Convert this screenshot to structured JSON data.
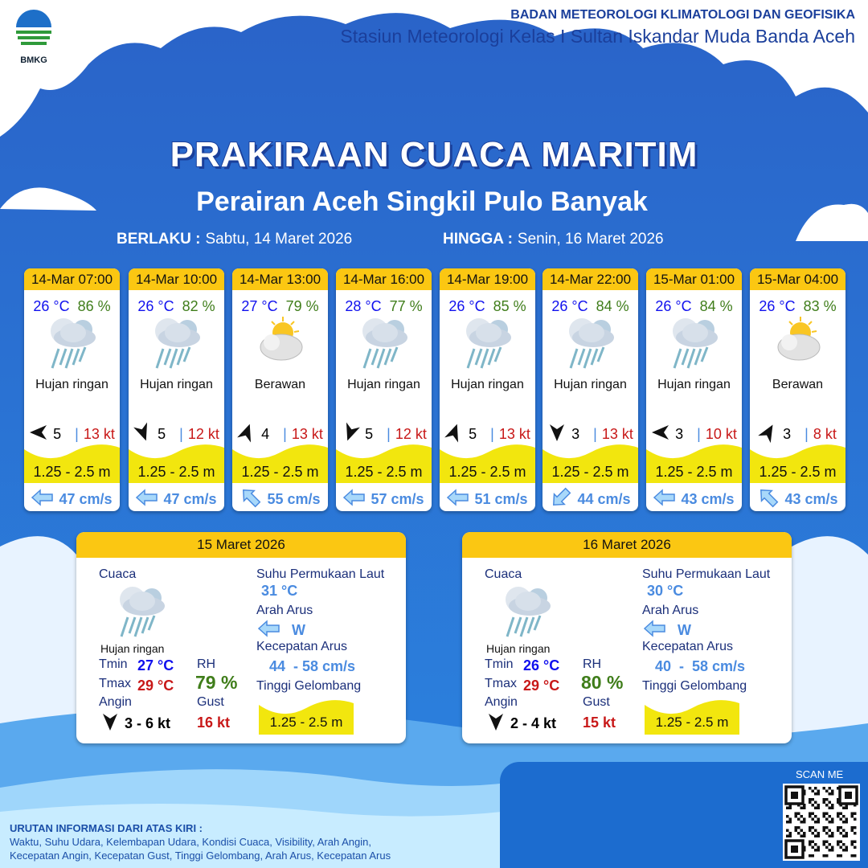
{
  "header": {
    "org": "BADAN METEOROLOGI KLIMATOLOGI DAN GEOFISIKA",
    "station": "Stasiun Meteorologi Kelas I Sultan Iskandar Muda Banda Aceh",
    "logo": "BMKG"
  },
  "title": "PRAKIRAAN CUACA MARITIM",
  "subtitle": "Perairan Aceh Singkil Pulo Banyak",
  "validity": {
    "from_label": "BERLAKU :",
    "from": "Sabtu, 14 Maret 2026",
    "to_label": "HINGGA :",
    "to": "Senin, 16 Maret 2026"
  },
  "colors": {
    "header_yellow": "#fbc712",
    "wave_yellow": "#f2e60e",
    "temp": "#1010ee",
    "rh": "#3f7d1a",
    "gust": "#c81818",
    "current": "#4a8be0"
  },
  "forecasts": [
    {
      "time": "14-Mar 07:00",
      "temp": "26 °C",
      "rh": "86 %",
      "icon": "light-rain-icon",
      "cond": "Hujan ringan",
      "wind_dir_deg": 270,
      "wind": "5",
      "gust": "13 kt",
      "wave": "1.25 - 2.5 m",
      "cur_dir_deg": 270,
      "cur": "47 cm/s"
    },
    {
      "time": "14-Mar 10:00",
      "temp": "26 °C",
      "rh": "82 %",
      "icon": "light-rain-icon",
      "cond": "Hujan ringan",
      "wind_dir_deg": 160,
      "wind": "5",
      "gust": "12 kt",
      "wave": "1.25 - 2.5 m",
      "cur_dir_deg": 270,
      "cur": "47 cm/s"
    },
    {
      "time": "14-Mar 13:00",
      "temp": "27 °C",
      "rh": "79 %",
      "icon": "partly-cloudy-icon",
      "cond": "Berawan",
      "wind_dir_deg": 20,
      "wind": "4",
      "gust": "13 kt",
      "wave": "1.25 - 2.5 m",
      "cur_dir_deg": 315,
      "cur": "55 cm/s"
    },
    {
      "time": "14-Mar 16:00",
      "temp": "28 °C",
      "rh": "77 %",
      "icon": "light-rain-icon",
      "cond": "Hujan ringan",
      "wind_dir_deg": 200,
      "wind": "5",
      "gust": "12 kt",
      "wave": "1.25 - 2.5 m",
      "cur_dir_deg": 270,
      "cur": "57 cm/s"
    },
    {
      "time": "14-Mar 19:00",
      "temp": "26 °C",
      "rh": "85 %",
      "icon": "light-rain-icon",
      "cond": "Hujan ringan",
      "wind_dir_deg": 20,
      "wind": "5",
      "gust": "13 kt",
      "wave": "1.25 - 2.5 m",
      "cur_dir_deg": 270,
      "cur": "51 cm/s"
    },
    {
      "time": "14-Mar 22:00",
      "temp": "26 °C",
      "rh": "84 %",
      "icon": "light-rain-icon",
      "cond": "Hujan ringan",
      "wind_dir_deg": 180,
      "wind": "3",
      "gust": "13 kt",
      "wave": "1.25 - 2.5 m",
      "cur_dir_deg": 225,
      "cur": "44 cm/s"
    },
    {
      "time": "15-Mar 01:00",
      "temp": "26 °C",
      "rh": "84 %",
      "icon": "light-rain-icon",
      "cond": "Hujan ringan",
      "wind_dir_deg": 270,
      "wind": "3",
      "gust": "10 kt",
      "wave": "1.25 - 2.5 m",
      "cur_dir_deg": 270,
      "cur": "43 cm/s"
    },
    {
      "time": "15-Mar 04:00",
      "temp": "26 °C",
      "rh": "83 %",
      "icon": "partly-cloudy-icon",
      "cond": "Berawan",
      "wind_dir_deg": 30,
      "wind": "3",
      "gust": "8 kt",
      "wave": "1.25 - 2.5 m",
      "cur_dir_deg": 315,
      "cur": "43 cm/s"
    }
  ],
  "labels": {
    "weather": "Cuaca",
    "tmin": "Tmin",
    "tmax": "Tmax",
    "wind": "Angin",
    "rh": "RH",
    "gust": "Gust",
    "sst": "Suhu Permukaan Laut",
    "cur_dir": "Arah Arus",
    "cur_speed": "Kecepatan Arus",
    "wave": "Tinggi Gelombang"
  },
  "daily": [
    {
      "date": "15 Maret 2026",
      "cond": "Hujan ringan",
      "tmin": "27 °C",
      "tmax": "29 °C",
      "rh": "79 %",
      "wind": "3  - 6 kt",
      "gust": "16 kt",
      "sst": "31 °C",
      "cur_dir": "W",
      "cur_speed": "44  - 58 cm/s",
      "wave": "1.25 - 2.5 m"
    },
    {
      "date": "16 Maret 2026",
      "cond": "Hujan ringan",
      "tmin": "26 °C",
      "tmax": "29 °C",
      "rh": "80 %",
      "wind": "2  - 4 kt",
      "gust": "15 kt",
      "sst": "30 °C",
      "cur_dir": "W",
      "cur_speed": "40  -  58 cm/s",
      "wave": "1.25 - 2.5 m"
    }
  ],
  "footer": {
    "heading": "URUTAN INFORMASI DARI ATAS KIRI :",
    "line1": "Waktu, Suhu Udara, Kelembapan Udara, Kondisi Cuaca, Visibility, Arah Angin,",
    "line2": "Kecepatan Angin, Kecepatan Gust, Tinggi Gelombang, Arah Arus, Kecepatan Arus",
    "scan": "SCAN ME"
  }
}
